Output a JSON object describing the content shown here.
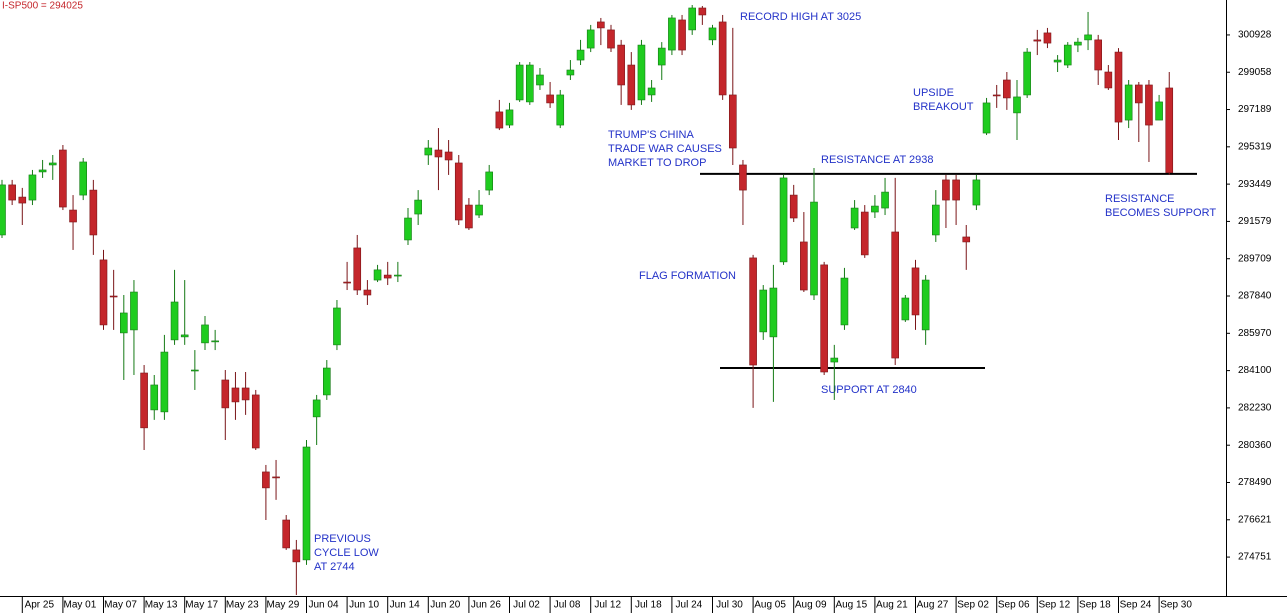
{
  "chart_data": {
    "type": "candlestick",
    "title": "I-SP500 = 294025",
    "categories": [
      null,
      null,
      "Apr 25",
      null,
      null,
      null,
      "May 01",
      null,
      null,
      null,
      "May 07",
      null,
      null,
      null,
      "May 13",
      null,
      null,
      null,
      "May 17",
      null,
      null,
      null,
      "May 23",
      null,
      null,
      null,
      "May 29",
      null,
      null,
      null,
      "Jun 04",
      null,
      null,
      null,
      "Jun 10",
      null,
      null,
      null,
      "Jun 14",
      null,
      null,
      null,
      "Jun 20",
      null,
      null,
      null,
      "Jun 26",
      null,
      null,
      null,
      "Jul 02",
      null,
      null,
      null,
      "Jul 08",
      null,
      null,
      null,
      "Jul 12",
      null,
      null,
      null,
      "Jul 18",
      null,
      null,
      null,
      "Jul 24",
      null,
      null,
      null,
      "Jul 30",
      null,
      null,
      null,
      "Aug 05",
      null,
      null,
      null,
      "Aug 09",
      null,
      null,
      null,
      "Aug 15",
      null,
      null,
      null,
      "Aug 21",
      null,
      null,
      null,
      "Aug 27",
      null,
      null,
      null,
      "Sep 02",
      null,
      null,
      null,
      "Sep 06",
      null,
      null,
      null,
      "Sep 12",
      null,
      null,
      null,
      "Sep 18",
      null,
      null,
      null,
      "Sep 24",
      null,
      null,
      null,
      "Sep 30",
      null
    ],
    "open": [
      290900,
      293410,
      292800,
      292650,
      294060,
      294410,
      295160,
      292150,
      292900,
      293150,
      289650,
      287840,
      285990,
      286140,
      283980,
      282130,
      282030,
      285640,
      285790,
      284080,
      285490,
      285540,
      283630,
      283230,
      283230,
      282880,
      279020,
      278770,
      276610,
      275110,
      274610,
      281780,
      282880,
      285390,
      288540,
      290250,
      288140,
      288640,
      288890,
      288840,
      290650,
      291950,
      294910,
      295160,
      295060,
      294510,
      292400,
      291900,
      293150,
      297070,
      296410,
      297670,
      297570,
      298420,
      297920,
      296410,
      298920,
      299670,
      300270,
      301580,
      301180,
      300420,
      299420,
      297670,
      297920,
      299420,
      300170,
      301680,
      301180,
      302280,
      300680,
      301580,
      297920,
      294410,
      289750,
      286040,
      285790,
      289550,
      292900,
      290550,
      287890,
      289400,
      284530,
      286390,
      291250,
      292050,
      292050,
      292250,
      291050,
      286640,
      289250,
      286140,
      290900,
      293660,
      293660,
      290800,
      292400,
      296010,
      297920,
      298670,
      297020,
      297920,
      300680,
      301030,
      299570,
      299420,
      300420,
      300680,
      300680,
      299070,
      300070,
      296660,
      298420,
      298420,
      296660,
      298270
    ],
    "high": [
      293660,
      293660,
      293260,
      294160,
      294660,
      294910,
      295410,
      292900,
      294760,
      293660,
      290150,
      289150,
      287890,
      288640,
      284380,
      283880,
      285890,
      289150,
      288640,
      285130,
      286840,
      286140,
      284130,
      284030,
      284030,
      283130,
      279370,
      279620,
      276860,
      275610,
      280620,
      282880,
      284630,
      287640,
      289550,
      290900,
      288640,
      289400,
      289550,
      289550,
      292250,
      293150,
      295660,
      296260,
      295660,
      294910,
      292750,
      293150,
      294410,
      297670,
      297520,
      299570,
      299570,
      299270,
      298570,
      298170,
      299670,
      300680,
      301430,
      301780,
      301430,
      300680,
      300070,
      300680,
      298670,
      300570,
      301930,
      301930,
      302430,
      302380,
      301430,
      301930,
      301280,
      294660,
      289900,
      288390,
      289400,
      293910,
      293410,
      292050,
      294260,
      289550,
      285390,
      289250,
      292650,
      292400,
      292900,
      293760,
      293760,
      287890,
      289650,
      288890,
      293150,
      293910,
      293910,
      291400,
      293910,
      297770,
      298420,
      299070,
      298670,
      300270,
      301180,
      301280,
      299920,
      300570,
      300780,
      302080,
      300930,
      299420,
      300270,
      298670,
      298570,
      298670,
      297920,
      299070
    ],
    "low": [
      290750,
      292400,
      291400,
      292400,
      293760,
      293660,
      292150,
      290150,
      292650,
      289900,
      286140,
      286140,
      283630,
      283880,
      280120,
      281630,
      281630,
      285390,
      285390,
      283130,
      285130,
      285130,
      280620,
      281630,
      281880,
      280120,
      276610,
      277620,
      275110,
      272850,
      274360,
      280370,
      282630,
      285130,
      288140,
      287890,
      287390,
      288540,
      288390,
      288540,
      290400,
      291400,
      294410,
      293150,
      293910,
      291400,
      291150,
      291750,
      292900,
      296160,
      296260,
      297570,
      297420,
      298170,
      297270,
      296260,
      298670,
      299420,
      300070,
      300420,
      300070,
      297420,
      297170,
      297420,
      297570,
      298670,
      299920,
      299920,
      300930,
      301430,
      300420,
      297670,
      294410,
      291400,
      282230,
      285640,
      282530,
      289400,
      291550,
      288040,
      287640,
      283880,
      282630,
      286140,
      291150,
      289750,
      291750,
      291900,
      284380,
      286540,
      286140,
      285390,
      290550,
      291250,
      291400,
      289150,
      292150,
      295910,
      297270,
      297170,
      295660,
      297770,
      299920,
      300270,
      299070,
      299270,
      300070,
      300170,
      298420,
      298170,
      295660,
      296260,
      295560,
      294560,
      296660,
      293910
    ],
    "close": [
      293410,
      292650,
      292500,
      293910,
      294160,
      294510,
      292300,
      291550,
      294560,
      290900,
      286390,
      287790,
      286990,
      288040,
      281230,
      283380,
      285030,
      287540,
      285890,
      284130,
      286390,
      285590,
      282230,
      282530,
      282630,
      280220,
      278220,
      278720,
      275210,
      274510,
      280270,
      282630,
      284230,
      287240,
      288490,
      288140,
      287890,
      289150,
      288740,
      288890,
      291750,
      292650,
      295260,
      294810,
      294660,
      291650,
      291250,
      292400,
      294060,
      296260,
      297170,
      299420,
      299420,
      298920,
      297520,
      297920,
      299170,
      300170,
      301180,
      301280,
      300270,
      298420,
      297420,
      300420,
      298270,
      300270,
      301780,
      300170,
      302280,
      301930,
      301280,
      297920,
      295260,
      293150,
      284380,
      288140,
      288240,
      293760,
      291750,
      288140,
      292550,
      284030,
      284730,
      288740,
      292250,
      289900,
      292350,
      293050,
      284730,
      287740,
      286890,
      288640,
      292400,
      292650,
      292650,
      290550,
      293660,
      297520,
      297870,
      297770,
      297820,
      300070,
      300620,
      300520,
      299670,
      300420,
      300570,
      300930,
      299170,
      298270,
      296560,
      298420,
      297520,
      296410,
      297570,
      294025
    ],
    "up_color": "#1fcc1f",
    "down_color": "#c4262b",
    "ylim": [
      272850,
      302680
    ],
    "yticks": [
      274751,
      276621,
      278490,
      280360,
      282230,
      284100,
      285970,
      287840,
      289709,
      291579,
      293449,
      295319,
      297189,
      299058,
      300928
    ],
    "levels": [
      293960,
      284230
    ],
    "grid": false,
    "annotations": [
      {
        "lines": [
          "RECORD HIGH AT 3025"
        ]
      },
      {
        "lines": [
          "TRUMP'S CHINA",
          "TRADE WAR CAUSES",
          "MARKET TO DROP"
        ]
      },
      {
        "lines": [
          "RESISTANCE AT 2938"
        ]
      },
      {
        "lines": [
          "UPSIDE",
          "BREAKOUT"
        ]
      },
      {
        "lines": [
          "RESISTANCE",
          "BECOMES SUPPORT"
        ]
      },
      {
        "lines": [
          "FLAG FORMATION"
        ]
      },
      {
        "lines": [
          "SUPPORT AT 2840"
        ]
      },
      {
        "lines": [
          "PREVIOUS",
          "CYCLE LOW",
          "AT 2744"
        ]
      }
    ]
  }
}
